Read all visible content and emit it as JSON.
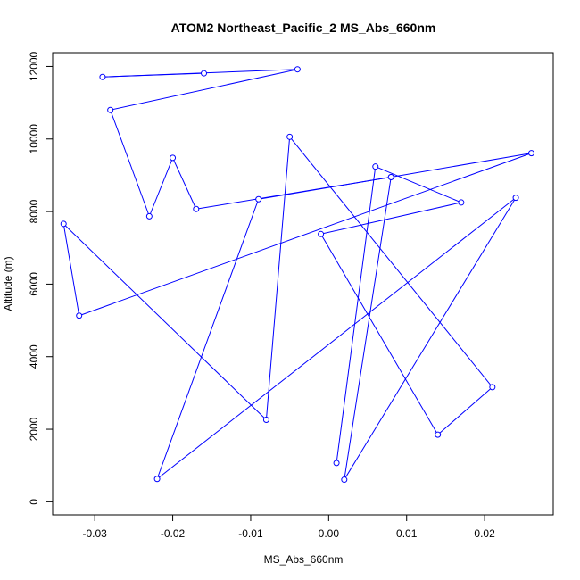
{
  "chart_data": {
    "type": "line",
    "title": "ATOM2 Northeast_Pacific_2 MS_Abs_660nm",
    "xlabel": "MS_Abs_660nm",
    "ylabel": "Altitude (m)",
    "xlim": [
      -0.0354,
      0.0288
    ],
    "ylim": [
      -360,
      12380
    ],
    "x_ticks": [
      -0.03,
      -0.02,
      -0.01,
      0.0,
      0.01,
      0.02
    ],
    "x_tick_labels": [
      "-0.03",
      "-0.02",
      "-0.01",
      "0.00",
      "0.01",
      "0.02"
    ],
    "y_ticks": [
      0,
      2000,
      4000,
      6000,
      8000,
      10000,
      12000
    ],
    "y_tick_labels": [
      "0",
      "2000",
      "4000",
      "6000",
      "8000",
      "10000",
      "12000"
    ],
    "grid": false,
    "color": "#0000ff",
    "series": [
      {
        "marker": "open-circle",
        "points": [
          {
            "x": -0.016,
            "y": 11810
          },
          {
            "x": -0.029,
            "y": 11710
          },
          {
            "x": -0.004,
            "y": 11920
          },
          {
            "x": -0.028,
            "y": 10800
          },
          {
            "x": -0.023,
            "y": 7870
          },
          {
            "x": -0.02,
            "y": 9480
          },
          {
            "x": -0.017,
            "y": 8070
          },
          {
            "x": 0.008,
            "y": 8950
          },
          {
            "x": -0.009,
            "y": 8340
          },
          {
            "x": -0.022,
            "y": 630
          },
          {
            "x": 0.024,
            "y": 8380
          },
          {
            "x": 0.002,
            "y": 610
          },
          {
            "x": 0.008,
            "y": 8950
          },
          {
            "x": 0.026,
            "y": 9610
          },
          {
            "x": -0.032,
            "y": 5130
          },
          {
            "x": -0.034,
            "y": 7660
          },
          {
            "x": -0.008,
            "y": 2260
          },
          {
            "x": -0.005,
            "y": 10060
          },
          {
            "x": 0.021,
            "y": 3160
          },
          {
            "x": 0.014,
            "y": 1850
          },
          {
            "x": -0.001,
            "y": 7380
          },
          {
            "x": 0.017,
            "y": 8250
          },
          {
            "x": 0.006,
            "y": 9240
          },
          {
            "x": 0.001,
            "y": 1070
          }
        ]
      }
    ]
  }
}
